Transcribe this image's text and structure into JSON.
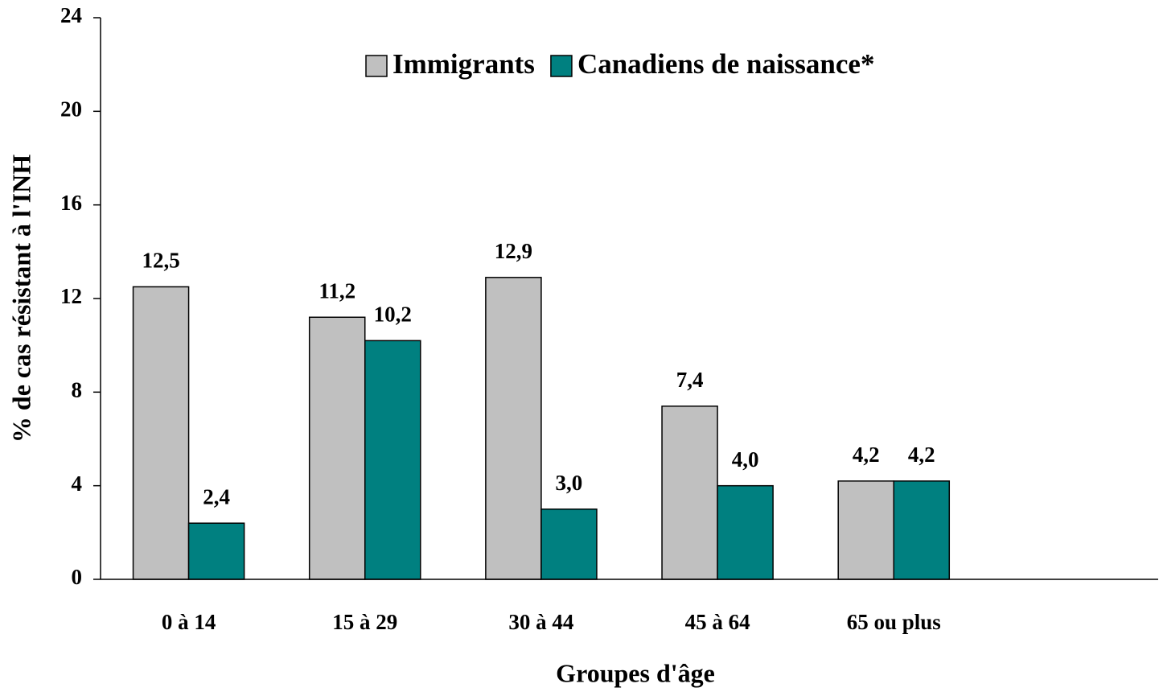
{
  "chart_data": {
    "type": "bar",
    "x_label": "Groupes d'âge",
    "y_label": "% de cas résistant à l'INH",
    "categories": [
      "0 à 14",
      "15 à 29",
      "30 à 44",
      "45 à 64",
      "65 ou plus",
      null
    ],
    "series": [
      {
        "name": "Immigrants",
        "color": "#c0c0c0",
        "values": [
          12.5,
          11.2,
          12.9,
          7.4,
          4.2,
          null
        ],
        "value_labels": [
          "12,5",
          "11,2",
          "12,9",
          "7,4",
          "4,2",
          null
        ]
      },
      {
        "name": "Canadiens de naissance*",
        "color": "#008080",
        "values": [
          2.4,
          10.2,
          3.0,
          4.0,
          4.2,
          null
        ],
        "value_labels": [
          "2,4",
          "10,2",
          "3,0",
          "4,0",
          "4,2",
          null
        ]
      }
    ],
    "ylim": [
      0,
      24
    ],
    "yticks": [
      0,
      4,
      8,
      12,
      16,
      20,
      24
    ],
    "grid": false,
    "legend": "top"
  }
}
